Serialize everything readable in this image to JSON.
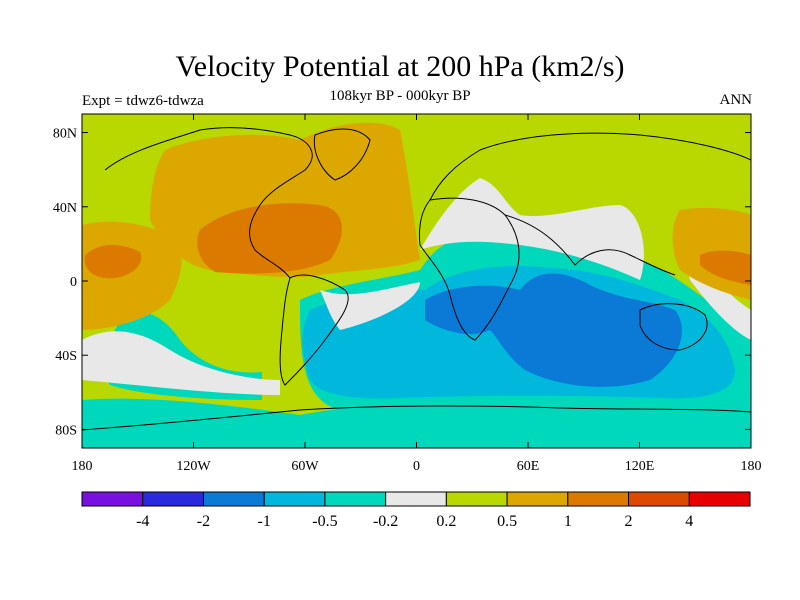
{
  "header": {
    "title": "Velocity Potential at 200 hPa (km2/s)",
    "subtitle": "108kyr BP - 000kyr BP",
    "left_label": "Expt = tdwz6-tdwza",
    "right_label": "ANN"
  },
  "map": {
    "projection": "cylindrical equidistant",
    "lon_range": [
      -180,
      180
    ],
    "lat_range": [
      -90,
      90
    ],
    "x_ticks": [
      "180",
      "120W",
      "60W",
      "0",
      "60E",
      "120E",
      "180"
    ],
    "y_ticks": [
      "80N",
      "40N",
      "0",
      "40S",
      "80S"
    ]
  },
  "colorbar": {
    "labels": [
      "-4",
      "-2",
      "-1",
      "-0.5",
      "-0.2",
      "0.2",
      "0.5",
      "1",
      "2",
      "4"
    ],
    "colors": [
      "#7a10e0",
      "#2a2adc",
      "#0a7ad6",
      "#00b8dc",
      "#00d8bc",
      "#e8e8e8",
      "#b8d800",
      "#dca800",
      "#dc7a00",
      "#dc4a00",
      "#e80000"
    ]
  }
}
